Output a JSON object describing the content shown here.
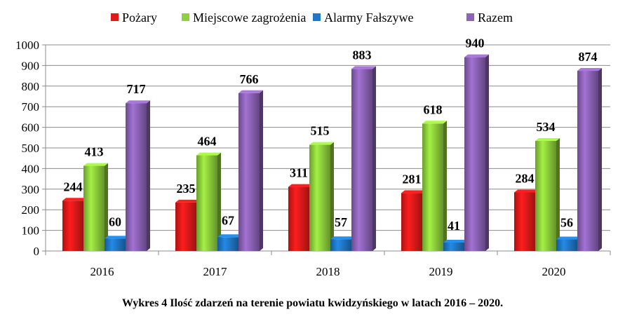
{
  "chart_data": {
    "type": "bar",
    "title": "",
    "xlabel": "",
    "ylabel": "",
    "categories": [
      "2016",
      "2017",
      "2018",
      "2019",
      "2020"
    ],
    "ylim": [
      0,
      1000
    ],
    "yticks": [
      0,
      100,
      200,
      300,
      400,
      500,
      600,
      700,
      800,
      900,
      1000
    ],
    "grid": true,
    "legend_position": "top",
    "series": [
      {
        "name": "Pożary",
        "values": [
          244,
          235,
          311,
          281,
          284
        ],
        "color": "#e31919"
      },
      {
        "name": "Miejscowe zagrożenia",
        "values": [
          413,
          464,
          515,
          618,
          534
        ],
        "color": "#8fd13c"
      },
      {
        "name": "Alarmy Fałszywe",
        "values": [
          60,
          67,
          57,
          41,
          56
        ],
        "color": "#1f78c8"
      },
      {
        "name": "Razem",
        "values": [
          717,
          766,
          883,
          940,
          874
        ],
        "color": "#8e63b8"
      }
    ]
  },
  "caption": "Wykres 4  Ilość zdarzeń na terenie powiatu kwidzyńskiego  w latach  2016 – 2020."
}
